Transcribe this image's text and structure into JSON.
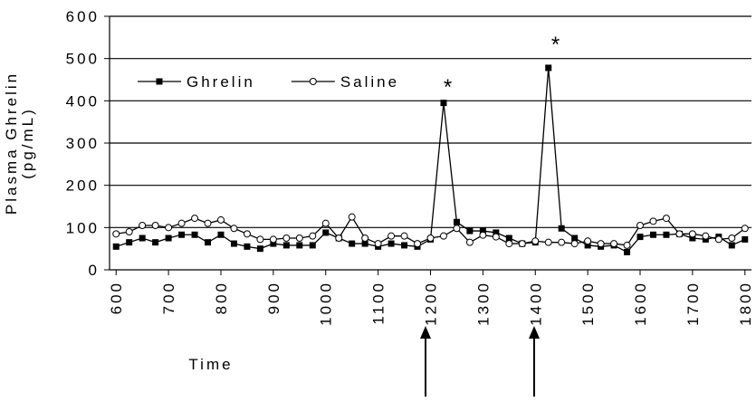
{
  "chart_data": {
    "type": "line",
    "categories": [
      "600",
      null,
      null,
      null,
      "700",
      null,
      null,
      null,
      "800",
      null,
      null,
      null,
      "900",
      null,
      null,
      null,
      "1000",
      null,
      null,
      null,
      "1100",
      null,
      null,
      null,
      "1200",
      null,
      null,
      null,
      "1300",
      null,
      null,
      null,
      "1400",
      null,
      null,
      null,
      "1500",
      null,
      null,
      null,
      "1600",
      null,
      null,
      null,
      "1700",
      null,
      null,
      null,
      "1800"
    ],
    "series": [
      {
        "name": "Ghrelin",
        "color": "#000000",
        "marker": "square",
        "values": [
          55,
          65,
          75,
          65,
          75,
          83,
          83,
          65,
          83,
          62,
          55,
          50,
          62,
          58,
          58,
          58,
          88,
          75,
          62,
          62,
          55,
          62,
          58,
          55,
          72,
          395,
          113,
          92,
          92,
          88,
          75,
          62,
          65,
          478,
          98,
          75,
          58,
          55,
          58,
          42,
          78,
          83,
          83,
          85,
          75,
          72,
          78,
          58,
          72
        ]
      },
      {
        "name": "Saline",
        "color": "#000000",
        "marker": "circle",
        "values": [
          85,
          90,
          105,
          105,
          100,
          110,
          122,
          110,
          118,
          98,
          85,
          72,
          72,
          75,
          75,
          80,
          110,
          75,
          125,
          75,
          62,
          80,
          80,
          62,
          75,
          80,
          98,
          65,
          82,
          78,
          62,
          62,
          68,
          65,
          65,
          62,
          68,
          62,
          62,
          58,
          105,
          115,
          122,
          85,
          85,
          80,
          72,
          75,
          98
        ]
      }
    ],
    "ylim": [
      0,
      600
    ],
    "yticks": [
      0,
      100,
      200,
      300,
      400,
      500,
      600
    ],
    "grid": true,
    "xlabel": "Time",
    "ylabel": [
      "Plasma Ghrelin",
      "(pg/mL)"
    ],
    "legend": "upper left",
    "annotations": [
      "*",
      "*"
    ]
  }
}
